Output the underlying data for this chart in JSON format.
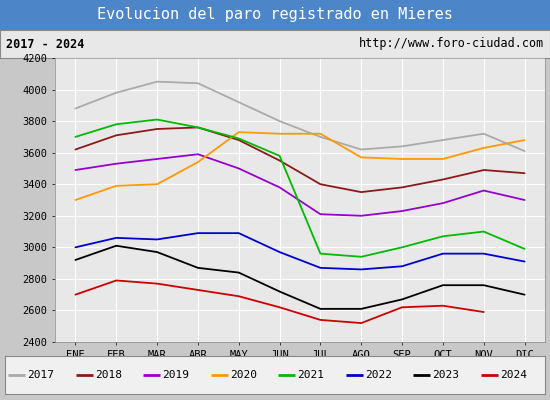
{
  "title": "Evolucion del paro registrado en Mieres",
  "subtitle_left": "2017 - 2024",
  "subtitle_right": "http://www.foro-ciudad.com",
  "x_labels": [
    "ENE",
    "FEB",
    "MAR",
    "ABR",
    "MAY",
    "JUN",
    "JUL",
    "AGO",
    "SEP",
    "OCT",
    "NOV",
    "DIC"
  ],
  "ylim": [
    2400,
    4200
  ],
  "yticks": [
    2400,
    2600,
    2800,
    3000,
    3200,
    3400,
    3600,
    3800,
    4000,
    4200
  ],
  "series": {
    "2017": {
      "color": "#aaaaaa",
      "data": [
        3880,
        3980,
        4050,
        4040,
        3920,
        3800,
        3700,
        3620,
        3640,
        3680,
        3720,
        3610
      ]
    },
    "2018": {
      "color": "#8b1a1a",
      "data": [
        3620,
        3710,
        3750,
        3760,
        3680,
        3550,
        3400,
        3350,
        3380,
        3430,
        3490,
        3470
      ]
    },
    "2019": {
      "color": "#9900cc",
      "data": [
        3490,
        3530,
        3560,
        3590,
        3500,
        3380,
        3210,
        3200,
        3230,
        3280,
        3360,
        3300
      ]
    },
    "2020": {
      "color": "#ff9900",
      "data": [
        3300,
        3390,
        3400,
        3540,
        3730,
        3720,
        3720,
        3570,
        3560,
        3560,
        3630,
        3680
      ]
    },
    "2021": {
      "color": "#00bb00",
      "data": [
        3700,
        3780,
        3810,
        3760,
        3690,
        3580,
        2960,
        2940,
        3000,
        3070,
        3100,
        2990
      ]
    },
    "2022": {
      "color": "#0000cc",
      "data": [
        3000,
        3060,
        3050,
        3090,
        3090,
        2970,
        2870,
        2860,
        2880,
        2960,
        2960,
        2910
      ]
    },
    "2023": {
      "color": "#000000",
      "data": [
        2920,
        3010,
        2970,
        2870,
        2840,
        2720,
        2610,
        2610,
        2670,
        2760,
        2760,
        2700
      ]
    },
    "2024": {
      "color": "#cc0000",
      "data": [
        2700,
        2790,
        2770,
        2730,
        2690,
        2620,
        2540,
        2520,
        2620,
        2630,
        2590,
        null
      ]
    }
  },
  "background_color": "#c8c8c8",
  "plot_bg_color": "#e8e8e8",
  "title_bg_color": "#4d86c8",
  "title_color": "#ffffff",
  "grid_color": "#ffffff",
  "info_bg_color": "#e8e8e8",
  "legend_bg_color": "#f0f0f0",
  "legend_years": [
    "2017",
    "2018",
    "2019",
    "2020",
    "2021",
    "2022",
    "2023",
    "2024"
  ],
  "legend_colors": [
    "#aaaaaa",
    "#8b1a1a",
    "#9900cc",
    "#ff9900",
    "#00bb00",
    "#0000cc",
    "#000000",
    "#cc0000"
  ]
}
